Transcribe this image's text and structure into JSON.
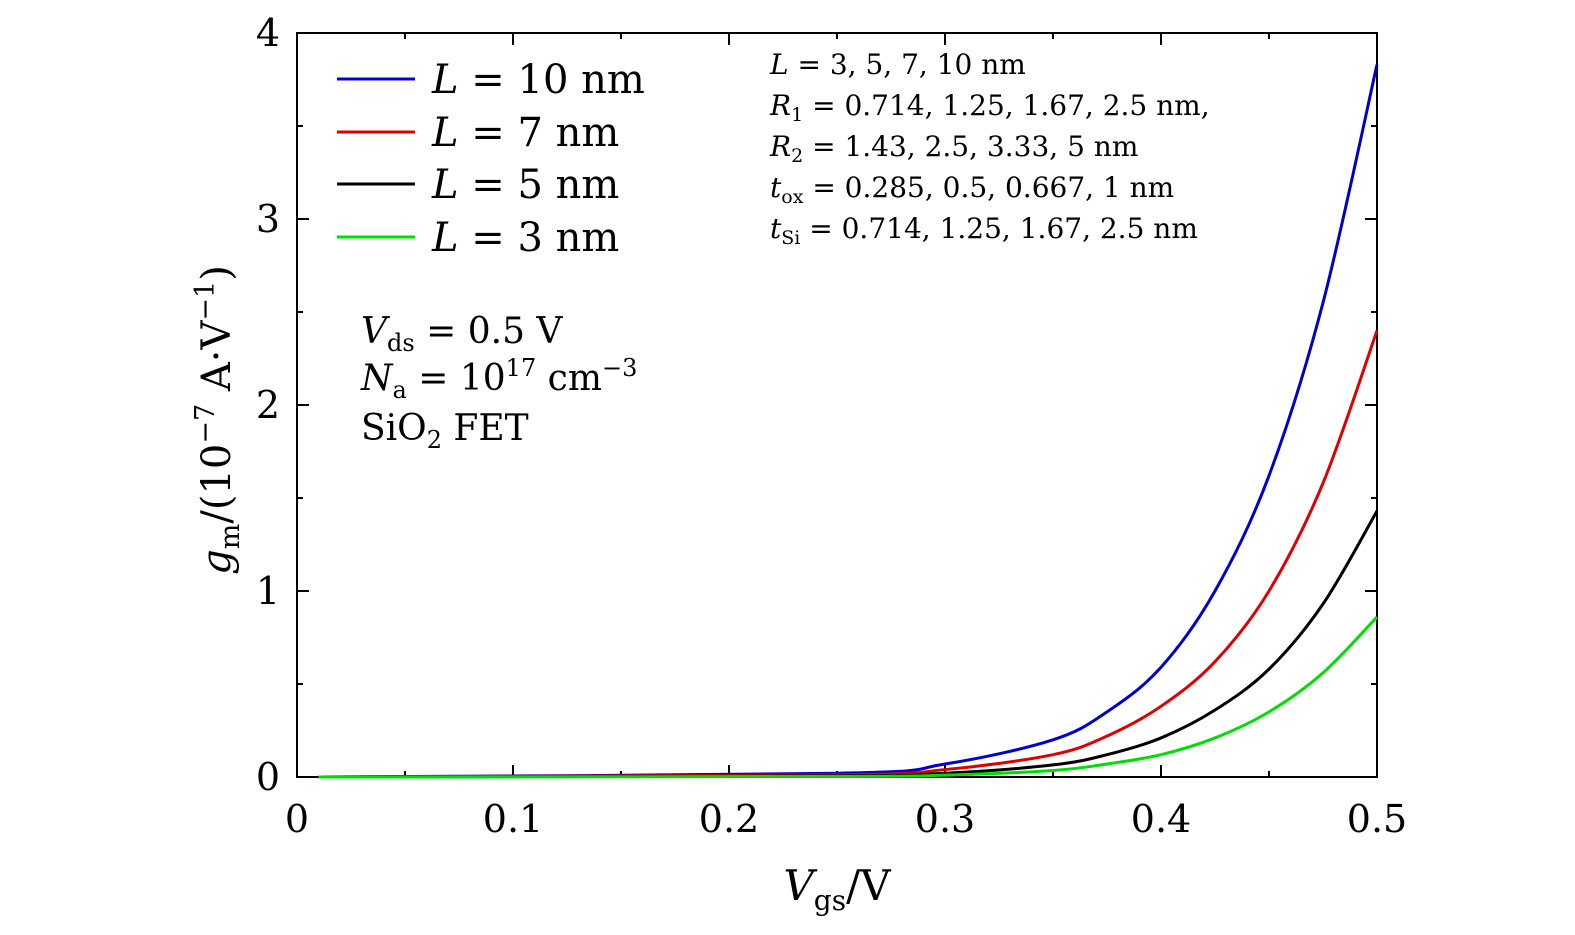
{
  "chart_data": {
    "type": "line",
    "xlabel": {
      "main": "V",
      "sub": "gs",
      "unit": "/V"
    },
    "ylabel": {
      "main": "g",
      "sub": "m",
      "unit": "/(10",
      "exp": "−7",
      "unit2": " A·V",
      "exp2": "−1",
      "close": ")"
    },
    "xlim": [
      0,
      0.5
    ],
    "ylim": [
      0,
      4
    ],
    "x_ticks": [
      0,
      0.1,
      0.2,
      0.3,
      0.4,
      0.5
    ],
    "x_tick_labels": [
      "0",
      "0.1",
      "0.2",
      "0.3",
      "0.4",
      "0.5"
    ],
    "y_ticks": [
      0,
      1,
      2,
      3,
      4
    ],
    "y_tick_labels": [
      "0",
      "1",
      "2",
      "3",
      "4"
    ],
    "x": [
      0.01,
      0.25,
      0.3,
      0.35,
      0.375,
      0.4,
      0.425,
      0.45,
      0.475,
      0.5
    ],
    "series": [
      {
        "name": "L = 10 nm",
        "var": "L",
        "value": "10 nm",
        "color": "#0000cc",
        "values": [
          0.0,
          0.02,
          0.07,
          0.2,
          0.35,
          0.59,
          1.0,
          1.62,
          2.55,
          3.83
        ]
      },
      {
        "name": "L = 7 nm",
        "var": "L",
        "value": "7 nm",
        "color": "#dd0000",
        "values": [
          0.0,
          0.012,
          0.04,
          0.12,
          0.22,
          0.38,
          0.62,
          1.0,
          1.58,
          2.4
        ]
      },
      {
        "name": "L = 5 nm",
        "var": "L",
        "value": "5 nm",
        "color": "#000000",
        "values": [
          0.0,
          0.006,
          0.02,
          0.065,
          0.12,
          0.21,
          0.36,
          0.58,
          0.93,
          1.43
        ]
      },
      {
        "name": "L = 3 nm",
        "var": "L",
        "value": "3 nm",
        "color": "#00dd00",
        "values": [
          0.0,
          0.003,
          0.01,
          0.035,
          0.07,
          0.12,
          0.21,
          0.35,
          0.56,
          0.86
        ]
      }
    ],
    "legend": "top-left",
    "annotations_left": [
      {
        "main": "V",
        "sub": "ds",
        "rest": " = 0.5 V"
      },
      {
        "main": "N",
        "sub": "a",
        "rest": " = 10",
        "exp": "17",
        "rest2": " cm",
        "exp2": "−3"
      },
      {
        "main": "SiO",
        "sub": "2",
        "rest": " FET"
      }
    ],
    "annotations_right": [
      {
        "main": "L",
        "sub": "",
        "rest": " = 3, 5, 7, 10 nm"
      },
      {
        "main": "R",
        "sub": "1",
        "rest": " = 0.714, 1.25, 1.67, 2.5 nm,"
      },
      {
        "main": "R",
        "sub": "2",
        "rest": " = 1.43, 2.5, 3.33, 5 nm"
      },
      {
        "main": "t",
        "sub": "ox",
        "rest": " = 0.285, 0.5, 0.667, 1 nm"
      },
      {
        "main": "t",
        "sub": "Si",
        "rest": " = 0.714, 1.25, 1.67, 2.5 nm"
      }
    ],
    "grid": false
  }
}
